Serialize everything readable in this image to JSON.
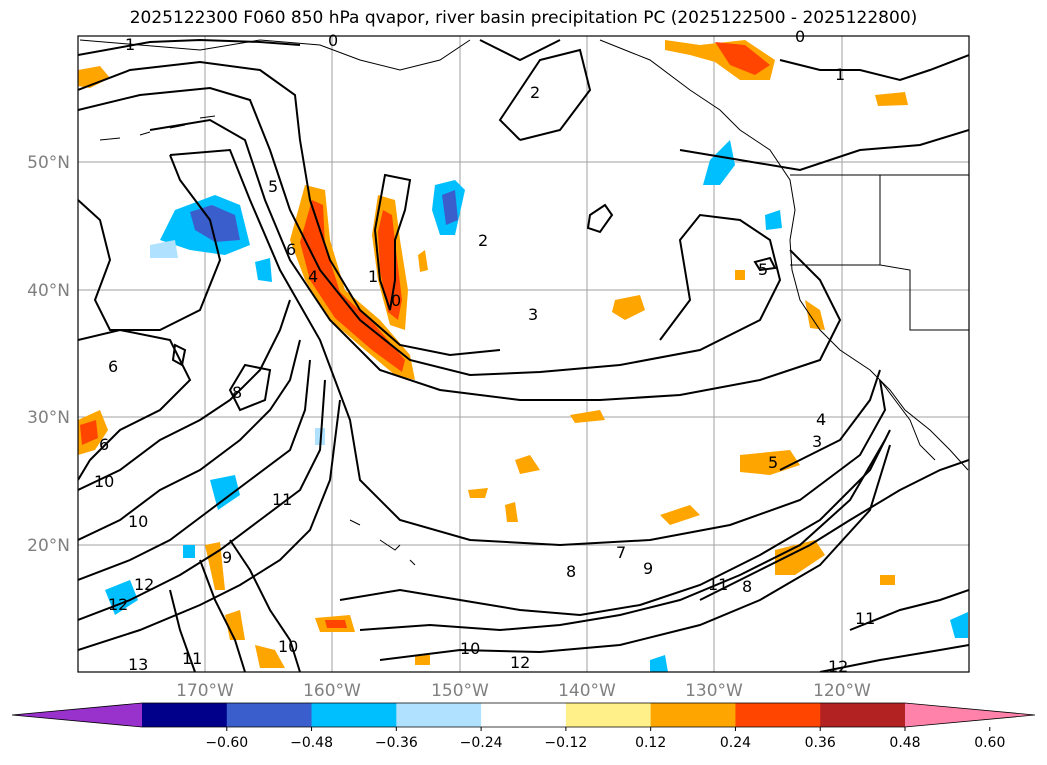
{
  "title": "2025122300 F060 850 hPa qvapor, river basin precipitation PC (2025122500 - 2025122800)",
  "lat_labels": [
    "50°N",
    "40°N",
    "30°N",
    "20°N"
  ],
  "lon_labels": [
    "170°W",
    "160°W",
    "150°W",
    "140°W",
    "130°W",
    "120°W"
  ],
  "contour_labels": [
    "1",
    "0",
    "2",
    "5",
    "6",
    "4",
    "1",
    "0",
    "2",
    "3",
    "5",
    "6",
    "8",
    "6",
    "10",
    "10",
    "11",
    "9",
    "12",
    "12",
    "13",
    "11",
    "10",
    "10",
    "12",
    "7",
    "8",
    "9",
    "11",
    "8",
    "11",
    "12",
    "4",
    "3",
    "5",
    "1",
    "0"
  ],
  "colorbar": {
    "ticks": [
      "−0.60",
      "−0.48",
      "−0.36",
      "−0.24",
      "−0.12",
      "0.12",
      "0.24",
      "0.36",
      "0.48",
      "0.60"
    ],
    "colors": [
      "#9932cc",
      "#00008b",
      "#3a5fcd",
      "#00bfff",
      "#b0e2ff",
      "#ffffff",
      "#fff08a",
      "#ffa500",
      "#ff4500",
      "#b22222",
      "#ff82ab"
    ],
    "extend": "both"
  },
  "fill_colors": {
    "orange": "#ffa500",
    "red": "#ff4500",
    "yellow": "#fff08a",
    "darkred": "#b22222",
    "blue": "#3a5fcd",
    "cyan": "#00bfff",
    "lightblue": "#b0e2ff"
  }
}
